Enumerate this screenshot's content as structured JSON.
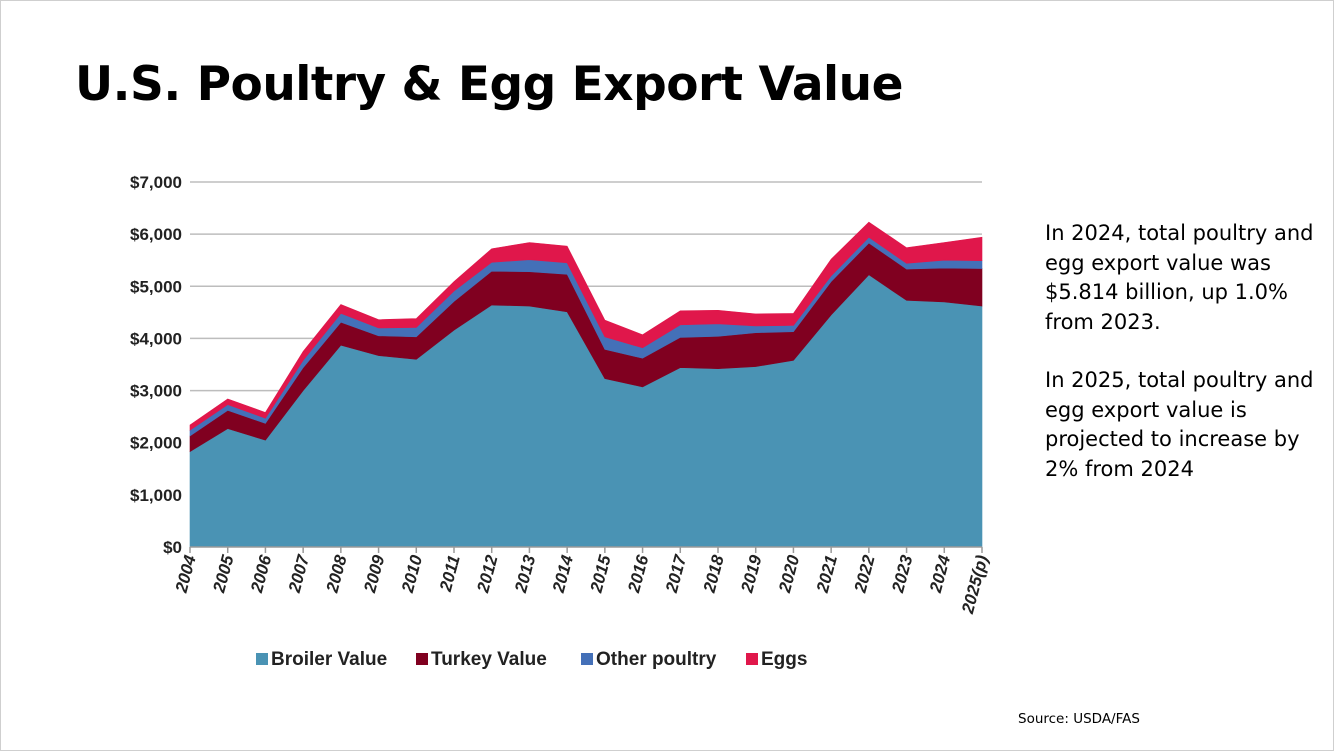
{
  "slide": {
    "title": "U.S. Poultry & Egg Export Value",
    "paragraph1": "In 2024, total poultry and egg export value was $5.814 billion, up 1.0% from 2023.",
    "paragraph2": "In 2025, total poultry and egg export value is projected to increase by 2% from 2024",
    "source": "Source: USDA/FAS"
  },
  "chart_data": {
    "type": "area",
    "stacked": true,
    "title": "",
    "xlabel": "",
    "ylabel": "",
    "ylim": [
      0,
      7000
    ],
    "yticks": [
      0,
      1000,
      2000,
      3000,
      4000,
      5000,
      6000,
      7000
    ],
    "ytick_labels": [
      "$0",
      "$1,000",
      "$2,000",
      "$3,000",
      "$4,000",
      "$5,000",
      "$6,000",
      "$7,000"
    ],
    "grid": true,
    "legend_position": "bottom",
    "categories": [
      "2004",
      "2005",
      "2006",
      "2007",
      "2008",
      "2009",
      "2010",
      "2011",
      "2012",
      "2013",
      "2014",
      "2015",
      "2016",
      "2017",
      "2018",
      "2019",
      "2020",
      "2021",
      "2022",
      "2023",
      "2024",
      "2025(p)"
    ],
    "series": [
      {
        "name": "Broiler Value",
        "color": "#4a93b4",
        "values": [
          1830,
          2270,
          2050,
          3000,
          3870,
          3670,
          3600,
          4160,
          4640,
          4620,
          4510,
          3230,
          3070,
          3440,
          3420,
          3460,
          3580,
          4450,
          5220,
          4730,
          4700,
          4620
        ]
      },
      {
        "name": "Turkey Value",
        "color": "#800020",
        "values": [
          300,
          350,
          320,
          440,
          440,
          380,
          430,
          550,
          650,
          660,
          720,
          560,
          550,
          580,
          620,
          650,
          550,
          640,
          610,
          600,
          650,
          720
        ]
      },
      {
        "name": "Other poultry",
        "color": "#4470b8",
        "values": [
          110,
          110,
          100,
          140,
          170,
          150,
          180,
          200,
          170,
          230,
          220,
          240,
          200,
          240,
          240,
          130,
          120,
          110,
          110,
          110,
          150,
          150
        ]
      },
      {
        "name": "Eggs",
        "color": "#e0174b",
        "values": [
          100,
          110,
          110,
          170,
          170,
          160,
          170,
          180,
          260,
          330,
          320,
          320,
          250,
          270,
          260,
          230,
          230,
          320,
          290,
          300,
          340,
          450
        ]
      }
    ]
  }
}
